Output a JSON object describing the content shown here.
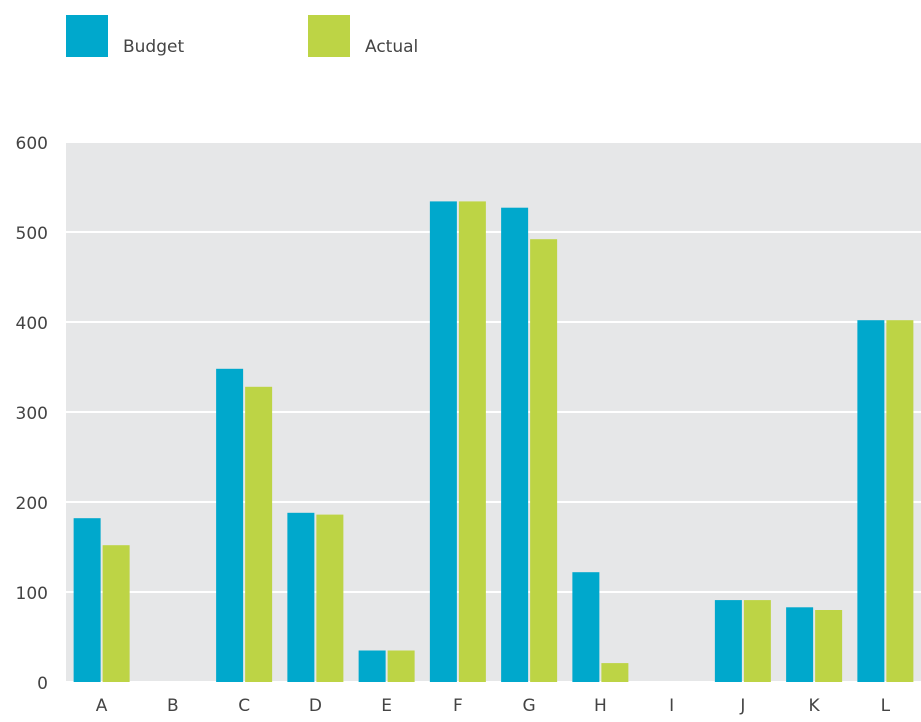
{
  "chart_data": {
    "type": "bar",
    "categories": [
      "A",
      "B",
      "C",
      "D",
      "E",
      "F",
      "G",
      "H",
      "I",
      "J",
      "K",
      "L"
    ],
    "series": [
      {
        "name": "Budget",
        "color": "#00a8cc",
        "values": [
          182,
          0,
          348,
          188,
          35,
          534,
          527,
          122,
          0,
          91,
          83,
          402
        ]
      },
      {
        "name": "Actual",
        "color": "#bdd445",
        "values": [
          152,
          0,
          328,
          186,
          35,
          534,
          492,
          21,
          0,
          91,
          80,
          402
        ]
      }
    ],
    "ylim": [
      0,
      600
    ],
    "yticks": [
      0,
      100,
      200,
      300,
      400,
      500,
      600
    ],
    "grid": true
  }
}
